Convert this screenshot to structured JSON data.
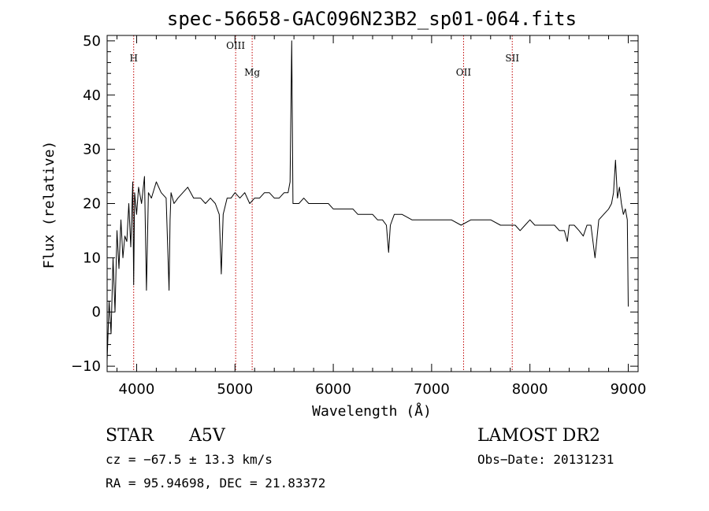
{
  "chart_data": {
    "type": "line",
    "title": "spec-56658-GAC096N23B2_sp01-064.fits",
    "xlabel": "Wavelength (Å)",
    "ylabel": "Flux (relative)",
    "xlim": [
      3700,
      9100
    ],
    "ylim": [
      -11,
      51
    ],
    "x_ticks": [
      4000,
      5000,
      6000,
      7000,
      8000,
      9000
    ],
    "y_ticks": [
      -10,
      0,
      10,
      20,
      30,
      40,
      50
    ],
    "grid": false,
    "series": [
      {
        "x": [
          3700,
          3720,
          3740,
          3760,
          3780,
          3800,
          3820,
          3840,
          3860,
          3880,
          3900,
          3920,
          3940,
          3960,
          3970,
          3980,
          4000,
          4020,
          4050,
          4080,
          4100,
          4120,
          4150,
          4200,
          4250,
          4300,
          4330,
          4340,
          4350,
          4380,
          4420,
          4470,
          4520,
          4580,
          4650,
          4700,
          4750,
          4800,
          4840,
          4861,
          4880,
          4920,
          4960,
          5000,
          5050,
          5100,
          5150,
          5200,
          5250,
          5300,
          5350,
          5400,
          5450,
          5500,
          5540,
          5560,
          5577,
          5590,
          5620,
          5650,
          5700,
          5750,
          5800,
          5850,
          5900,
          5950,
          6000,
          6050,
          6100,
          6150,
          6200,
          6250,
          6300,
          6350,
          6400,
          6450,
          6500,
          6540,
          6563,
          6580,
          6620,
          6700,
          6800,
          6900,
          7000,
          7100,
          7200,
          7300,
          7400,
          7500,
          7600,
          7700,
          7800,
          7850,
          7900,
          7950,
          8000,
          8050,
          8100,
          8150,
          8200,
          8250,
          8300,
          8350,
          8380,
          8400,
          8450,
          8500,
          8542,
          8580,
          8620,
          8662,
          8700,
          8750,
          8800,
          8830,
          8850,
          8870,
          8890,
          8910,
          8930,
          8950,
          8970,
          8990,
          9000
        ],
        "y": [
          -9,
          2,
          -4,
          10,
          0,
          15,
          8,
          17,
          10,
          14,
          13,
          20,
          12,
          24,
          5,
          22,
          18,
          23,
          20,
          25,
          4,
          22,
          21,
          24,
          22,
          21,
          4,
          17,
          22,
          20,
          21,
          22,
          23,
          21,
          21,
          20,
          21,
          20,
          18,
          7,
          18,
          21,
          21,
          22,
          21,
          22,
          20,
          21,
          21,
          22,
          22,
          21,
          21,
          22,
          22,
          24,
          50,
          20,
          20,
          20,
          21,
          20,
          20,
          20,
          20,
          20,
          19,
          19,
          19,
          19,
          19,
          18,
          18,
          18,
          18,
          17,
          17,
          16,
          11,
          16,
          18,
          18,
          17,
          17,
          17,
          17,
          17,
          16,
          17,
          17,
          17,
          16,
          16,
          16,
          15,
          16,
          17,
          16,
          16,
          16,
          16,
          16,
          15,
          15,
          13,
          16,
          16,
          15,
          14,
          16,
          16,
          10,
          17,
          18,
          19,
          20,
          22,
          28,
          21,
          23,
          20,
          18,
          19,
          17,
          1
        ]
      }
    ],
    "line_markers": [
      {
        "name": "H",
        "x": 3970
      },
      {
        "name": "OIII",
        "x": 5007
      },
      {
        "name": "Mg",
        "x": 5175
      },
      {
        "name": "OII",
        "x": 7325
      },
      {
        "name": "SII",
        "x": 7820
      }
    ]
  },
  "info": {
    "object_type": "STAR",
    "subclass": "A5V",
    "survey": "LAMOST DR2",
    "cz": "cz = −67.5 ± 13.3 km/s",
    "obs_date": "Obs−Date: 20131231",
    "coords": "RA =  95.94698, DEC =  21.83372"
  },
  "colors": {
    "spectrum": "#000000",
    "marker": "#c00000",
    "axes": "#000000"
  }
}
